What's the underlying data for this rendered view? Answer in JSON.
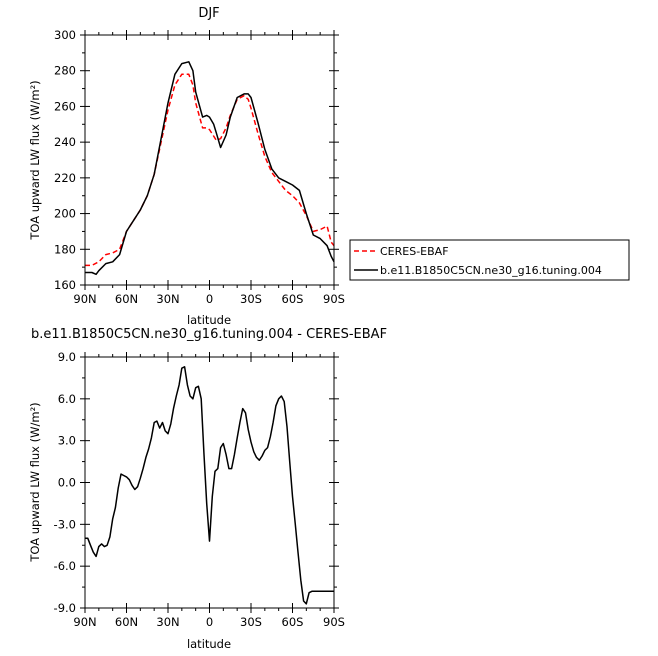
{
  "chart_data": [
    {
      "type": "line",
      "title": "DJF",
      "xlabel": "latitude",
      "ylabel": "TOA upward LW flux (W/m²)",
      "xlim": [
        90,
        -90
      ],
      "ylim": [
        160,
        300
      ],
      "x_ticks": [
        90,
        60,
        30,
        0,
        -30,
        -60,
        -90
      ],
      "x_tick_labels": [
        "90N",
        "60N",
        "30N",
        "0",
        "30S",
        "60S",
        "90S"
      ],
      "y_ticks": [
        160,
        180,
        200,
        220,
        240,
        260,
        280,
        300
      ],
      "y_tick_labels": [
        "160",
        "180",
        "200",
        "220",
        "240",
        "260",
        "280",
        "300"
      ],
      "legend": "outside-right",
      "series": [
        {
          "name": "CERES-EBAF",
          "color": "#ff0000",
          "dash": "dashed",
          "x": [
            90,
            85,
            80,
            75,
            70,
            65,
            60,
            55,
            50,
            45,
            40,
            35,
            30,
            25,
            20,
            15,
            12,
            10,
            5,
            2,
            0,
            -5,
            -8,
            -12,
            -15,
            -20,
            -25,
            -28,
            -30,
            -35,
            -40,
            -45,
            -50,
            -55,
            -60,
            -65,
            -70,
            -75,
            -80,
            -85,
            -88,
            -90
          ],
          "y": [
            171,
            171,
            173,
            177,
            178,
            180,
            190,
            196,
            202,
            210,
            222,
            240,
            258,
            272,
            278,
            278,
            272,
            262,
            248,
            248,
            247,
            241,
            242,
            248,
            255,
            264,
            266,
            264,
            259,
            245,
            232,
            223,
            218,
            213,
            210,
            206,
            199,
            190,
            191,
            193,
            184,
            182
          ]
        },
        {
          "name": "b.e11.B1850C5CN.ne30_g16.tuning.004",
          "color": "#000000",
          "dash": "solid",
          "x": [
            90,
            85,
            82,
            80,
            75,
            70,
            65,
            60,
            55,
            50,
            45,
            40,
            35,
            30,
            25,
            20,
            15,
            12,
            10,
            5,
            2,
            0,
            -3,
            -5,
            -8,
            -12,
            -15,
            -20,
            -25,
            -28,
            -30,
            -35,
            -40,
            -45,
            -50,
            -55,
            -60,
            -65,
            -70,
            -75,
            -80,
            -85,
            -88,
            -90
          ],
          "y": [
            167,
            167,
            166,
            168,
            172,
            173,
            177,
            190,
            196,
            202,
            210,
            222,
            242,
            262,
            278,
            284,
            285,
            280,
            268,
            254,
            255,
            254,
            250,
            245,
            237,
            244,
            254,
            265,
            267,
            267,
            265,
            251,
            236,
            225,
            220,
            218,
            216,
            213,
            200,
            188,
            186,
            182,
            176,
            173
          ]
        }
      ]
    },
    {
      "type": "line",
      "title": "b.e11.B1850C5CN.ne30_g16.tuning.004 - CERES-EBAF",
      "xlabel": "latitude",
      "ylabel": "TOA upward LW flux (W/m²)",
      "xlim": [
        90,
        -90
      ],
      "ylim": [
        -9,
        9
      ],
      "x_ticks": [
        90,
        60,
        30,
        0,
        -30,
        -60,
        -90
      ],
      "x_tick_labels": [
        "90N",
        "60N",
        "30N",
        "0",
        "30S",
        "60S",
        "90S"
      ],
      "y_ticks": [
        -9,
        -6,
        -3,
        0,
        3,
        6,
        9
      ],
      "y_tick_labels": [
        "-9.0",
        "-6.0",
        "-3.0",
        "0.0",
        "3.0",
        "6.0",
        "9.0"
      ],
      "series": [
        {
          "name": "",
          "color": "#000000",
          "dash": "solid",
          "x": [
            90,
            88,
            86,
            84,
            82,
            80,
            78,
            76,
            74,
            72,
            70,
            68,
            66,
            64,
            62,
            60,
            58,
            56,
            54,
            52,
            50,
            48,
            46,
            44,
            42,
            40,
            38,
            36,
            34,
            32,
            30,
            28,
            26,
            24,
            22,
            20,
            18,
            16,
            14,
            12,
            10,
            8,
            6,
            4,
            2,
            0,
            -2,
            -4,
            -6,
            -8,
            -10,
            -12,
            -14,
            -16,
            -18,
            -20,
            -22,
            -24,
            -26,
            -28,
            -30,
            -32,
            -34,
            -36,
            -38,
            -40,
            -42,
            -44,
            -46,
            -48,
            -50,
            -52,
            -54,
            -56,
            -58,
            -60,
            -62,
            -64,
            -66,
            -68,
            -70,
            -72,
            -74,
            -76,
            -78,
            -80,
            -82,
            -84,
            -86,
            -88,
            -90
          ],
          "y": [
            -4.0,
            -4.0,
            -4.5,
            -5.0,
            -5.3,
            -4.6,
            -4.4,
            -4.6,
            -4.5,
            -3.9,
            -2.6,
            -1.8,
            -0.4,
            0.6,
            0.5,
            0.4,
            0.2,
            -0.2,
            -0.5,
            -0.3,
            0.3,
            1.0,
            1.8,
            2.4,
            3.2,
            4.3,
            4.4,
            3.9,
            4.3,
            3.7,
            3.5,
            4.2,
            5.3,
            6.2,
            7.0,
            8.2,
            8.3,
            7.0,
            6.2,
            6.0,
            6.8,
            6.9,
            6.0,
            2.0,
            -1.5,
            -4.2,
            -1.0,
            0.8,
            1.0,
            2.5,
            2.8,
            2.0,
            1.0,
            1.0,
            2.0,
            3.2,
            4.3,
            5.3,
            5.0,
            3.8,
            2.9,
            2.2,
            1.8,
            1.6,
            1.9,
            2.3,
            2.5,
            3.3,
            4.3,
            5.5,
            6.0,
            6.2,
            5.8,
            4.0,
            1.5,
            -1.0,
            -3.0,
            -5.0,
            -7.0,
            -8.5,
            -8.7,
            -7.9,
            -7.8,
            -7.8,
            -7.8,
            -7.8,
            -7.8,
            -7.8,
            -7.8,
            -7.8,
            -7.8
          ]
        }
      ]
    }
  ]
}
